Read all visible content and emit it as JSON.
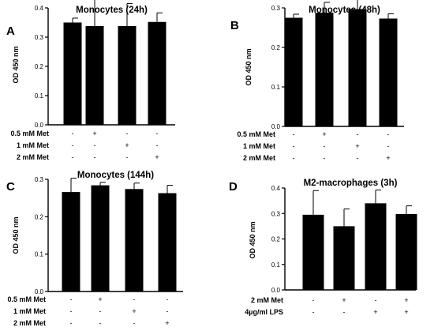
{
  "chart_data": [
    {
      "type": "bar",
      "panel_label": "A",
      "title": "Monocytes (24h)",
      "ylabel": "OD 450 nm",
      "ylim": [
        0,
        0.4
      ],
      "yticks": [
        "0.0",
        "0.1",
        "0.2",
        "0.3",
        "0.4"
      ],
      "values": [
        0.35,
        0.338,
        0.338,
        0.352
      ],
      "errors": [
        0.015,
        0.095,
        0.077,
        0.031
      ],
      "bar_color": "#000000",
      "conditions": [
        {
          "label": "0.5 mM Met",
          "marks": [
            "-",
            "+",
            "-",
            "-"
          ]
        },
        {
          "label": "1 mM Met",
          "marks": [
            "-",
            "-",
            "+",
            "-"
          ]
        },
        {
          "label": "2 mM Met",
          "marks": [
            "-",
            "-",
            "-",
            "+"
          ]
        }
      ]
    },
    {
      "type": "bar",
      "panel_label": "B",
      "title": "Monocytes (48h)",
      "ylabel": "OD 450 nm",
      "ylim": [
        0,
        0.3
      ],
      "yticks": [
        "0.0",
        "0.1",
        "0.2",
        "0.3"
      ],
      "values": [
        0.275,
        0.288,
        0.297,
        0.273
      ],
      "errors": [
        0.009,
        0.026,
        0.038,
        0.012
      ],
      "bar_color": "#000000",
      "conditions": [
        {
          "label": "0.5 mM Met",
          "marks": [
            "-",
            "+",
            "-",
            "-"
          ]
        },
        {
          "label": "1 mM Met",
          "marks": [
            "-",
            "-",
            "+",
            "-"
          ]
        },
        {
          "label": "2 mM Met",
          "marks": [
            "-",
            "-",
            "-",
            "+"
          ]
        }
      ]
    },
    {
      "type": "bar",
      "panel_label": "C",
      "title": "Monocytes (144h)",
      "ylabel": "OD 450 nm",
      "ylim": [
        0,
        0.3
      ],
      "yticks": [
        "0.0",
        "0.1",
        "0.2",
        "0.3"
      ],
      "values": [
        0.266,
        0.284,
        0.274,
        0.263
      ],
      "errors": [
        0.037,
        0.008,
        0.016,
        0.021
      ],
      "bar_color": "#000000",
      "conditions": [
        {
          "label": "0.5 mM Met",
          "marks": [
            "-",
            "+",
            "-",
            "-"
          ]
        },
        {
          "label": "1 mM Met",
          "marks": [
            "-",
            "-",
            "+",
            "-"
          ]
        },
        {
          "label": "2 mM Met",
          "marks": [
            "-",
            "-",
            "-",
            "+"
          ]
        }
      ]
    },
    {
      "type": "bar",
      "panel_label": "D",
      "title": "M2-macrophages (3h)",
      "ylabel": "OD 450 nm",
      "ylim": [
        0,
        0.4
      ],
      "yticks": [
        "0.0",
        "0.1",
        "0.2",
        "0.3",
        "0.4"
      ],
      "values": [
        0.295,
        0.25,
        0.34,
        0.298
      ],
      "errors": [
        0.095,
        0.068,
        0.052,
        0.032
      ],
      "bar_color": "#000000",
      "conditions": [
        {
          "label": "2 mM Met",
          "marks": [
            "-",
            "+",
            "-",
            "+"
          ]
        },
        {
          "label": "4µg/ml LPS",
          "marks": [
            "-",
            "-",
            "+",
            "+"
          ]
        }
      ]
    }
  ]
}
